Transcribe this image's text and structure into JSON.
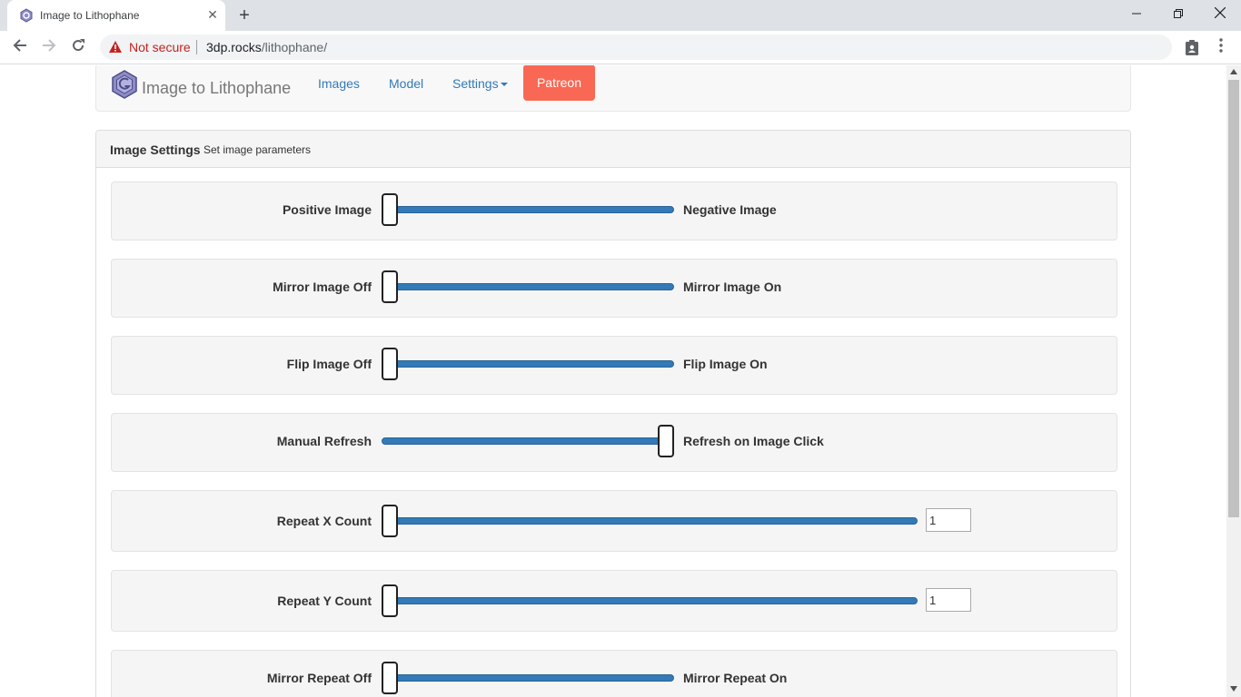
{
  "browser": {
    "tab_title": "Image to Lithophane",
    "new_tab_symbol": "+",
    "close_symbol": "✕",
    "security_label": "Not secure",
    "url_host": "3dp.rocks",
    "url_path": "/lithophane/",
    "icons": [
      "favicon-icon",
      "close-icon",
      "new-tab-icon",
      "back-icon",
      "forward-icon",
      "reload-icon",
      "warning-icon",
      "extension-icon",
      "menu-icon",
      "minimize-icon",
      "maximize-icon",
      "window-close-icon"
    ]
  },
  "navbar": {
    "brand": "Image to Lithophane",
    "links": [
      "Images",
      "Model",
      "Settings"
    ],
    "patreon": "Patreon",
    "link_color": "#337ab7",
    "patreon_color": "#f96854"
  },
  "panel": {
    "title": "Image Settings",
    "subtitle": "Set image parameters",
    "settings": [
      {
        "left": "Positive Image",
        "right": "Negative Image",
        "value": 0
      },
      {
        "left": "Mirror Image Off",
        "right": "Mirror Image On",
        "value": 0
      },
      {
        "left": "Flip Image Off",
        "right": "Flip Image On",
        "value": 0
      },
      {
        "left": "Manual Refresh",
        "right": "Refresh on Image Click",
        "value": 1
      },
      {
        "left": "Repeat X Count",
        "input": "1",
        "value": 1
      },
      {
        "left": "Repeat Y Count",
        "input": "1",
        "value": 1
      },
      {
        "left": "Mirror Repeat Off",
        "right": "Mirror Repeat On",
        "value": 0
      }
    ]
  }
}
